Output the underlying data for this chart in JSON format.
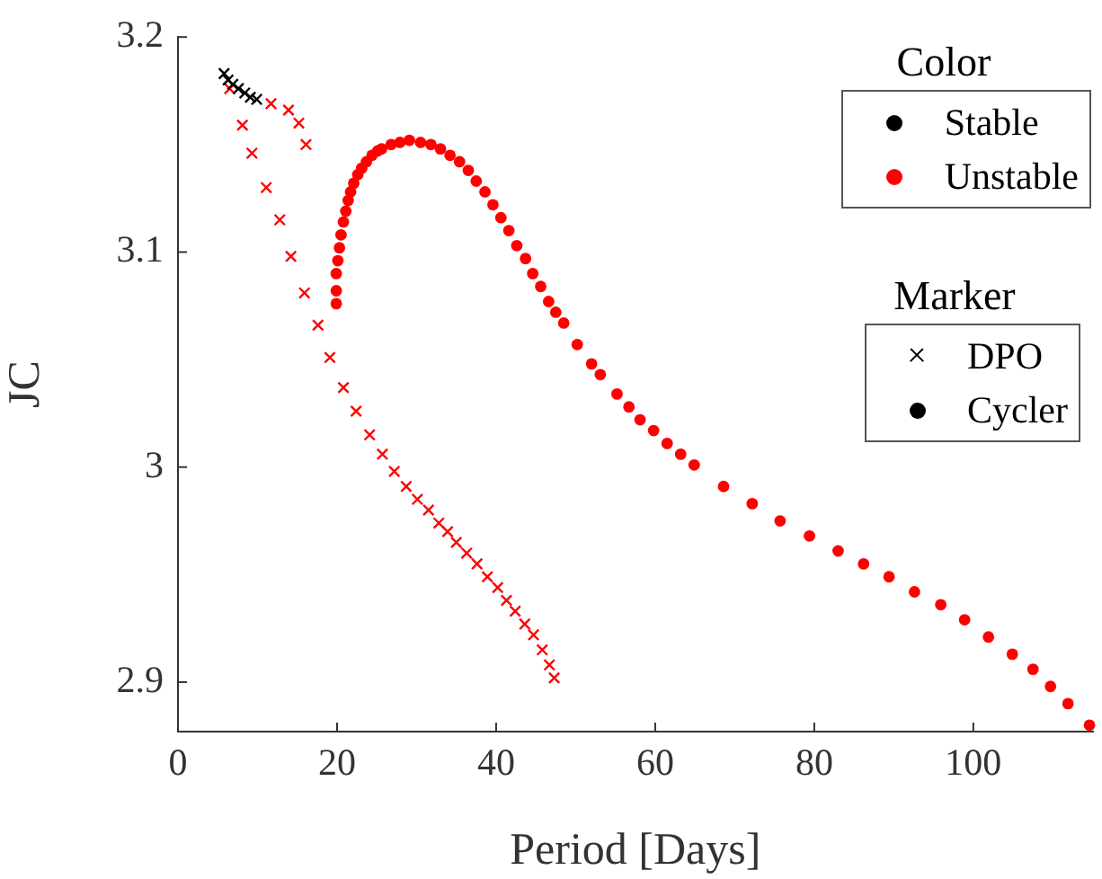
{
  "chart_data": {
    "type": "scatter",
    "xlabel": "Period [Days]",
    "ylabel": "JC",
    "legend": "top right",
    "legend_title": "Color",
    "xlim": [
      0,
      115
    ],
    "xticks": [
      0,
      20,
      40,
      60,
      80,
      100
    ],
    "ylim": [
      2.877,
      3.2
    ],
    "yticks": [
      2.9,
      3,
      3.1,
      3.2
    ],
    "grid": false,
    "annotations": [
      "Marker",
      "DPO",
      "Cycler"
    ],
    "series": [
      {
        "name": "Stable",
        "color": "#000000",
        "marker": "cross",
        "x": [
          5.8,
          6.3,
          6.9,
          7.6,
          8.4,
          9.1,
          9.9
        ],
        "values": [
          3.183,
          3.18,
          3.178,
          3.176,
          3.174,
          3.172,
          3.171
        ]
      },
      {
        "name": "Unstable",
        "color": "#ff0000",
        "marker": "cross",
        "x": [
          6.5,
          8.1,
          9.3,
          11.1,
          12.8,
          14.2,
          15.9,
          17.6,
          19.1,
          20.8,
          22.4,
          24.1,
          25.7,
          27.2,
          28.7,
          30.1,
          31.5,
          32.8,
          33.9,
          35,
          36.3,
          37.6,
          38.9,
          40.2,
          41.3,
          42.4,
          43.6,
          44.7,
          45.8,
          46.7,
          47.3,
          11.7,
          13.9,
          15.2,
          16.1
        ],
        "values": [
          3.176,
          3.159,
          3.146,
          3.13,
          3.115,
          3.098,
          3.081,
          3.066,
          3.051,
          3.037,
          3.026,
          3.015,
          3.006,
          2.998,
          2.991,
          2.985,
          2.98,
          2.974,
          2.97,
          2.965,
          2.96,
          2.955,
          2.949,
          2.944,
          2.938,
          2.933,
          2.927,
          2.922,
          2.915,
          2.908,
          2.902,
          3.169,
          3.166,
          3.16,
          3.15
        ]
      },
      {
        "color": "#ff0000",
        "marker": "circle",
        "x": [
          19.9,
          19.9,
          19.9,
          20.1,
          20.3,
          20.5,
          20.8,
          21.1,
          21.4,
          21.7,
          22.1,
          22.6,
          23.1,
          23.7,
          24.4,
          25.1,
          25.6,
          26.8,
          27.9,
          29.1,
          30.5,
          31.8,
          33,
          34.2,
          35.4,
          36.5,
          37.5,
          38.6,
          39.6,
          40.6,
          41.6,
          42.6,
          43.7,
          44.6,
          45.6,
          46.6,
          47.5,
          48.5,
          50.2,
          52,
          53.1,
          55.2,
          56.7,
          58.1,
          59.8,
          61.5,
          63.2,
          64.9,
          68.6,
          72.2,
          75.7,
          79.4,
          83,
          86.2,
          89.4,
          92.6,
          95.9,
          98.9,
          101.9,
          104.9,
          107.5,
          109.7,
          111.9,
          114.6
        ],
        "values": [
          3.076,
          3.082,
          3.09,
          3.096,
          3.102,
          3.108,
          3.114,
          3.119,
          3.124,
          3.128,
          3.132,
          3.136,
          3.139,
          3.142,
          3.145,
          3.147,
          3.148,
          3.15,
          3.151,
          3.152,
          3.151,
          3.15,
          3.148,
          3.145,
          3.142,
          3.138,
          3.133,
          3.128,
          3.122,
          3.116,
          3.11,
          3.103,
          3.097,
          3.09,
          3.084,
          3.077,
          3.072,
          3.067,
          3.057,
          3.048,
          3.043,
          3.034,
          3.028,
          3.022,
          3.017,
          3.011,
          3.006,
          3.001,
          2.991,
          2.983,
          2.975,
          2.968,
          2.961,
          2.955,
          2.949,
          2.942,
          2.936,
          2.929,
          2.921,
          2.913,
          2.906,
          2.898,
          2.89,
          2.88
        ]
      }
    ]
  }
}
